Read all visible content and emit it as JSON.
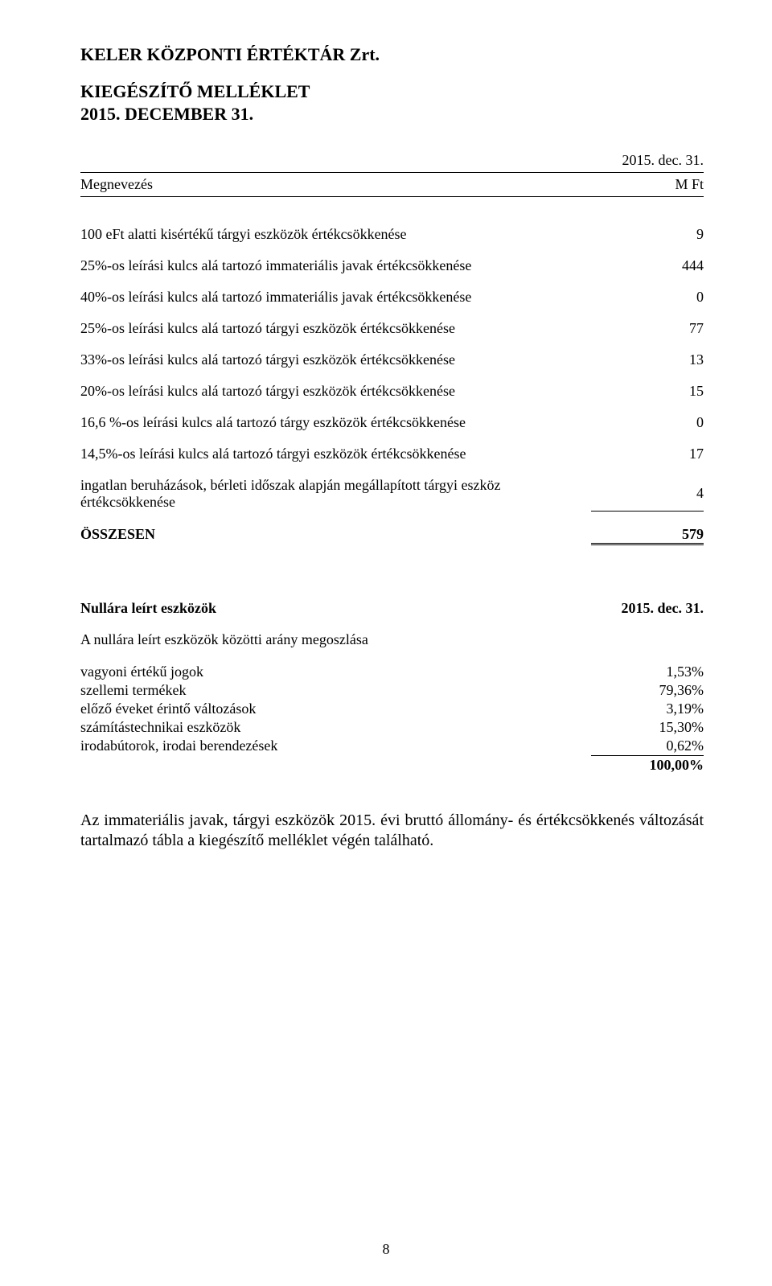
{
  "header": {
    "company": "KELER KÖZPONTI ÉRTÉKTÁR Zrt.",
    "doc_title": "KIEGÉSZÍTŐ MELLÉKLET",
    "doc_date": "2015. DECEMBER 31."
  },
  "table1": {
    "col_left": "Megnevezés",
    "col_right_top": "2015. dec. 31.",
    "col_right_bottom": "M Ft",
    "rows": [
      {
        "label": "100 eFt alatti kisértékű tárgyi eszközök értékcsökkenése",
        "value": "9"
      },
      {
        "label": "25%-os leírási kulcs alá tartozó immateriális javak értékcsökkenése",
        "value": "444"
      },
      {
        "label": "40%-os leírási kulcs alá tartozó immateriális javak értékcsökkenése",
        "value": "0"
      },
      {
        "label": "25%-os leírási kulcs alá tartozó tárgyi eszközök értékcsökkenése",
        "value": "77"
      },
      {
        "label": "33%-os leírási kulcs alá tartozó tárgyi eszközök értékcsökkenése",
        "value": "13"
      },
      {
        "label": "20%-os leírási kulcs alá tartozó tárgyi eszközök értékcsökkenése",
        "value": "15"
      },
      {
        "label": "16,6 %-os leírási kulcs alá tartozó tárgy eszközök értékcsökkenése",
        "value": "0"
      },
      {
        "label": "14,5%-os leírási kulcs alá tartozó tárgyi eszközök értékcsökkenése",
        "value": "17"
      },
      {
        "label": "ingatlan beruházások, bérleti időszak alapján megállapított tárgyi eszköz értékcsökkenése",
        "value": "4"
      }
    ],
    "total_label": "ÖSSZESEN",
    "total_value": "579"
  },
  "section2": {
    "title": "Nullára leírt eszközök",
    "date": "2015. dec. 31.",
    "subtitle": "A nullára leírt eszközök közötti arány megoszlása",
    "rows": [
      {
        "label": "vagyoni értékű jogok",
        "value": "1,53%"
      },
      {
        "label": "szellemi termékek",
        "value": "79,36%"
      },
      {
        "label": "előző éveket érintő változások",
        "value": "3,19%"
      },
      {
        "label": "számítástechnikai eszközök",
        "value": "15,30%"
      },
      {
        "label": "irodabútorok, irodai berendezések",
        "value": "0,62%"
      }
    ],
    "total_value": "100,00%"
  },
  "paragraph": "Az immateriális javak, tárgyi eszközök 2015. évi bruttó állomány- és értékcsökkenés változását tartalmazó tábla a kiegészítő melléklet végén található.",
  "page_number": "8"
}
